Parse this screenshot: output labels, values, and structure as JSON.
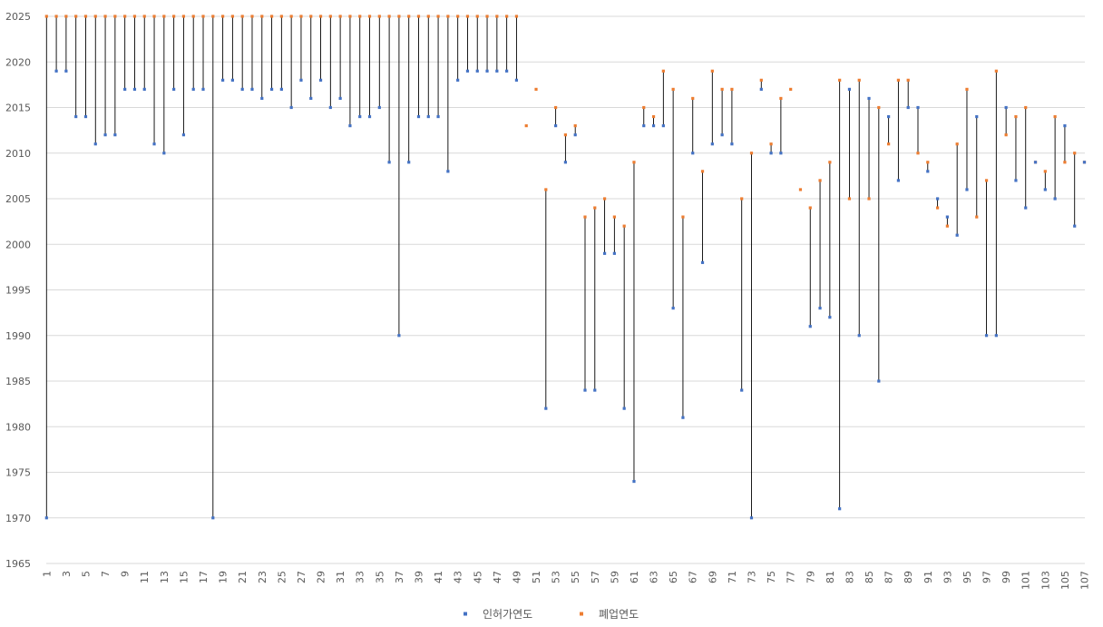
{
  "chart_data": {
    "type": "scatter",
    "title": "",
    "xlabel": "",
    "ylabel": "",
    "x": [
      1,
      2,
      3,
      4,
      5,
      6,
      7,
      8,
      9,
      10,
      11,
      12,
      13,
      14,
      15,
      16,
      17,
      18,
      19,
      20,
      21,
      22,
      23,
      24,
      25,
      26,
      27,
      28,
      29,
      30,
      31,
      32,
      33,
      34,
      35,
      36,
      37,
      38,
      39,
      40,
      41,
      42,
      43,
      44,
      45,
      46,
      47,
      48,
      49,
      50,
      51,
      52,
      53,
      54,
      55,
      56,
      57,
      58,
      59,
      60,
      61,
      62,
      63,
      64,
      65,
      66,
      67,
      68,
      69,
      70,
      71,
      72,
      73,
      74,
      75,
      76,
      77,
      78,
      79,
      80,
      81,
      82,
      83,
      84,
      85,
      86,
      87,
      88,
      89,
      90,
      91,
      92,
      93,
      94,
      95,
      96,
      97,
      98,
      99,
      100,
      101,
      102,
      103,
      104,
      105,
      106,
      107
    ],
    "series": [
      {
        "name": "인허가연도",
        "color": "#4472C4",
        "values": [
          1970,
          2019,
          2019,
          2014,
          2014,
          2011,
          2012,
          2012,
          2017,
          2017,
          2017,
          2011,
          2010,
          2017,
          2012,
          2017,
          2017,
          1970,
          2018,
          2018,
          2017,
          2017,
          2016,
          2017,
          2017,
          2015,
          2018,
          2016,
          2018,
          2015,
          2016,
          2013,
          2014,
          2014,
          2015,
          2009,
          1990,
          2009,
          2014,
          2014,
          2014,
          2008,
          2018,
          2019,
          2019,
          2019,
          2019,
          2019,
          2018,
          null,
          null,
          1982,
          2013,
          2009,
          2012,
          1984,
          1984,
          1999,
          1999,
          1982,
          1974,
          2013,
          2013,
          2013,
          1993,
          1981,
          2010,
          1998,
          2011,
          2012,
          2011,
          1984,
          1970,
          2017,
          2010,
          2010,
          null,
          null,
          1991,
          1993,
          1992,
          1971,
          2017,
          1990,
          2016,
          1985,
          2014,
          2007,
          2015,
          2015,
          2008,
          2005,
          2003,
          2001,
          2006,
          2014,
          1990,
          1990,
          2015,
          2007,
          2004,
          2009,
          2006,
          2005,
          2013,
          2002,
          2009
        ]
      },
      {
        "name": "폐업연도",
        "color": "#ED7D31",
        "values": [
          2025,
          2025,
          2025,
          2025,
          2025,
          2025,
          2025,
          2025,
          2025,
          2025,
          2025,
          2025,
          2025,
          2025,
          2025,
          2025,
          2025,
          2025,
          2025,
          2025,
          2025,
          2025,
          2025,
          2025,
          2025,
          2025,
          2025,
          2025,
          2025,
          2025,
          2025,
          2025,
          2025,
          2025,
          2025,
          2025,
          2025,
          2025,
          2025,
          2025,
          2025,
          2025,
          2025,
          2025,
          2025,
          2025,
          2025,
          2025,
          2025,
          2013,
          2017,
          2006,
          2015,
          2012,
          2013,
          2003,
          2004,
          2005,
          2003,
          2002,
          2009,
          2015,
          2014,
          2019,
          2017,
          2003,
          2016,
          2008,
          2019,
          2017,
          2017,
          2005,
          2010,
          2018,
          2011,
          2016,
          2017,
          2006,
          2004,
          2007,
          2009,
          2018,
          2005,
          2018,
          2005,
          2015,
          2011,
          2018,
          2018,
          2010,
          2009,
          2004,
          2002,
          2011,
          2017,
          2003,
          2007,
          2019,
          2012,
          2014,
          2015,
          2009,
          2008,
          2014,
          2009,
          2010,
          2009
        ]
      }
    ],
    "connectors": "high-low lines between the two series",
    "ylim": [
      1965,
      2025
    ],
    "yticks": [
      1965,
      1970,
      1975,
      1980,
      1985,
      1990,
      1995,
      2000,
      2005,
      2010,
      2015,
      2020,
      2025
    ],
    "xticks_shown": [
      1,
      3,
      5,
      7,
      9,
      11,
      13,
      15,
      17,
      19,
      21,
      23,
      25,
      27,
      29,
      31,
      33,
      35,
      37,
      39,
      41,
      43,
      45,
      47,
      49,
      51,
      53,
      55,
      57,
      59,
      61,
      63,
      65,
      67,
      69,
      71,
      73,
      75,
      77,
      79,
      81,
      83,
      85,
      87,
      89,
      91,
      93,
      95,
      97,
      99,
      101,
      103,
      105,
      107
    ],
    "grid": "horizontal",
    "legend": {
      "position": "bottom",
      "entries": [
        "인허가연도",
        "폐업연도"
      ]
    }
  }
}
